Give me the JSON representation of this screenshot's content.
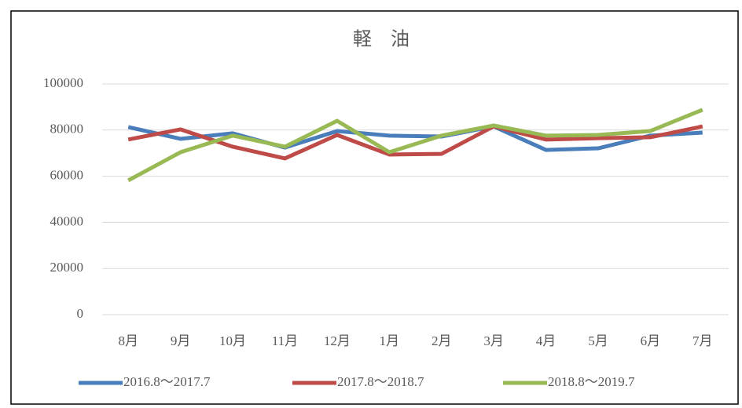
{
  "chart_data": {
    "type": "line",
    "title": "軽　油",
    "categories": [
      "8月",
      "9月",
      "10月",
      "11月",
      "12月",
      "1月",
      "2月",
      "3月",
      "4月",
      "5月",
      "6月",
      "7月"
    ],
    "series": [
      {
        "name": "2016.8～2017.7",
        "color": "#4a7ebb",
        "values": [
          81300,
          76200,
          78600,
          72400,
          79600,
          77600,
          77200,
          81600,
          71400,
          72100,
          77600,
          78900
        ]
      },
      {
        "name": "2017.8～2018.7",
        "color": "#be4b48",
        "values": [
          75900,
          80300,
          72800,
          67700,
          77900,
          69400,
          69700,
          81600,
          75900,
          76500,
          76900,
          81600
        ]
      },
      {
        "name": "2018.8～2019.7",
        "color": "#98b954",
        "values": [
          58200,
          70400,
          77600,
          72800,
          84000,
          70400,
          77600,
          82000,
          77600,
          77900,
          79600,
          88800
        ]
      }
    ],
    "ylim": [
      0,
      100000
    ],
    "yticks": [
      0,
      20000,
      40000,
      60000,
      80000,
      100000
    ],
    "grid": true,
    "legend": "bottom"
  }
}
